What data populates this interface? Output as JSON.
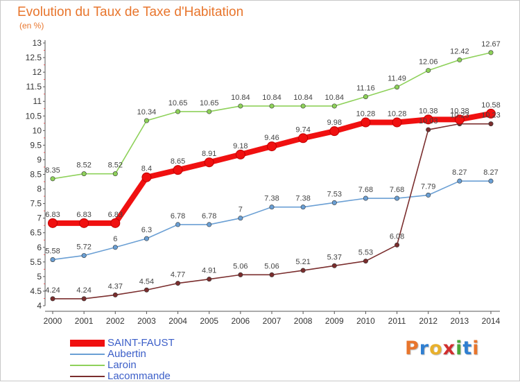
{
  "chart_data": {
    "type": "line",
    "title": "Evolution du Taux de Taxe d'Habitation",
    "unit_label": "(en %)",
    "xlabel": "",
    "ylabel": "",
    "x": [
      "2000",
      "2001",
      "2002",
      "2003",
      "2004",
      "2005",
      "2006",
      "2007",
      "2008",
      "2009",
      "2010",
      "2011",
      "2012",
      "2013",
      "2014"
    ],
    "ylim": [
      4,
      13
    ],
    "yticks": [
      "4",
      "4.5",
      "5",
      "5.5",
      "6",
      "6.5",
      "7",
      "7.5",
      "8",
      "8.5",
      "9",
      "9.5",
      "10",
      "10.5",
      "11",
      "11.5",
      "12",
      "12.5",
      "13"
    ],
    "grid": false,
    "legend_position": "bottom-left",
    "series": [
      {
        "name": "SAINT-FAUST",
        "color": "#f01010",
        "values": [
          6.83,
          6.83,
          6.83,
          8.4,
          8.65,
          8.91,
          9.18,
          9.46,
          9.74,
          9.98,
          10.28,
          10.28,
          10.38,
          10.38,
          10.58
        ],
        "labels": [
          "6.83",
          "6.83",
          "6.83",
          "8.4",
          "8.65",
          "8.91",
          "9.18",
          "9.46",
          "9.74",
          "9.98",
          "10.28",
          "10.28",
          "10.38",
          "10.38",
          "10.58"
        ]
      },
      {
        "name": "Aubertin",
        "color": "#6a9fd4",
        "values": [
          5.58,
          5.72,
          6,
          6.3,
          6.78,
          6.78,
          7,
          7.38,
          7.38,
          7.53,
          7.68,
          7.68,
          7.79,
          8.27,
          8.27
        ],
        "labels": [
          "5.58",
          "5.72",
          "6",
          "6.3",
          "6.78",
          "6.78",
          "7",
          "7.38",
          "7.38",
          "7.53",
          "7.68",
          "7.68",
          "7.79",
          "8.27",
          "8.27"
        ]
      },
      {
        "name": "Laroin",
        "color": "#8ed15a",
        "values": [
          8.35,
          8.52,
          8.52,
          10.34,
          10.65,
          10.65,
          10.84,
          10.84,
          10.84,
          10.84,
          11.16,
          11.49,
          12.06,
          12.42,
          12.67
        ],
        "labels": [
          "8.35",
          "8.52",
          "8.52",
          "10.34",
          "10.65",
          "10.65",
          "10.84",
          "10.84",
          "10.84",
          "10.84",
          "11.16",
          "11.49",
          "12.06",
          "12.42",
          "12.67"
        ]
      },
      {
        "name": "Lacommande",
        "color": "#7a2d2d",
        "values": [
          4.24,
          4.24,
          4.37,
          4.54,
          4.77,
          4.91,
          5.06,
          5.06,
          5.21,
          5.37,
          5.53,
          6.08,
          10.03,
          10.23,
          10.23
        ],
        "labels": [
          "4.24",
          "4.24",
          "4.37",
          "4.54",
          "4.77",
          "4.91",
          "5.06",
          "5.06",
          "5.21",
          "5.37",
          "5.53",
          "6.08",
          "10.03",
          "10.23",
          "10.23"
        ]
      }
    ]
  },
  "legend": [
    {
      "label": "SAINT-FAUST",
      "color": "#f01010"
    },
    {
      "label": "Aubertin",
      "color": "#6a9fd4"
    },
    {
      "label": "Laroin",
      "color": "#8ed15a"
    },
    {
      "label": "Lacommande",
      "color": "#7a2d2d"
    }
  ],
  "logo": {
    "text": "Proxiti",
    "letter_colors": [
      "#e8752c",
      "#2f7fd1",
      "#e8b02c",
      "#d12f2f",
      "#4aa63a",
      "#2f7fd1",
      "#e8752c"
    ]
  }
}
